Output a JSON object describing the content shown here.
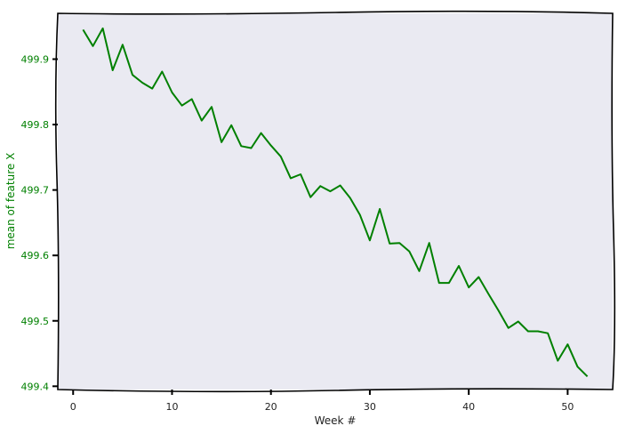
{
  "chart_data": {
    "type": "line",
    "title": "",
    "xlabel": "Week #",
    "ylabel": "mean of feature X",
    "xlim": [
      -1.55,
      54.55
    ],
    "ylim": [
      499.395,
      499.97
    ],
    "grid": false,
    "legend": "none",
    "x_ticks": [
      0,
      10,
      20,
      30,
      40,
      50
    ],
    "y_ticks": [
      499.4,
      499.5,
      499.6,
      499.7,
      499.8,
      499.9
    ],
    "colors": {
      "line": "#008000",
      "ylabel": "#008000",
      "ytick_labels": "#008000",
      "plot_background": "#eaeaf2",
      "frame": "#000000"
    },
    "series": [
      {
        "x": [
          1,
          2,
          3,
          4,
          5,
          6,
          7,
          8,
          9,
          10,
          11,
          12,
          13,
          14,
          15,
          16,
          17,
          18,
          19,
          20,
          21,
          22,
          23,
          24,
          25,
          26,
          27,
          28,
          29,
          30,
          31,
          32,
          33,
          34,
          35,
          36,
          37,
          38,
          39,
          40,
          41,
          42,
          43,
          44,
          45,
          46,
          47,
          48,
          49,
          50,
          51,
          52
        ],
        "values": [
          499.945,
          499.92,
          499.947,
          499.883,
          499.922,
          499.876,
          499.864,
          499.855,
          499.881,
          499.849,
          499.829,
          499.839,
          499.806,
          499.827,
          499.773,
          499.799,
          499.767,
          499.764,
          499.787,
          499.768,
          499.751,
          499.718,
          499.724,
          499.689,
          499.706,
          499.698,
          499.707,
          499.688,
          499.662,
          499.623,
          499.671,
          499.618,
          499.619,
          499.606,
          499.576,
          499.619,
          499.558,
          499.558,
          499.584,
          499.551,
          499.567,
          499.541,
          499.516,
          499.489,
          499.499,
          499.484,
          499.484,
          499.481,
          499.439,
          499.464,
          499.43,
          499.415
        ]
      }
    ]
  }
}
